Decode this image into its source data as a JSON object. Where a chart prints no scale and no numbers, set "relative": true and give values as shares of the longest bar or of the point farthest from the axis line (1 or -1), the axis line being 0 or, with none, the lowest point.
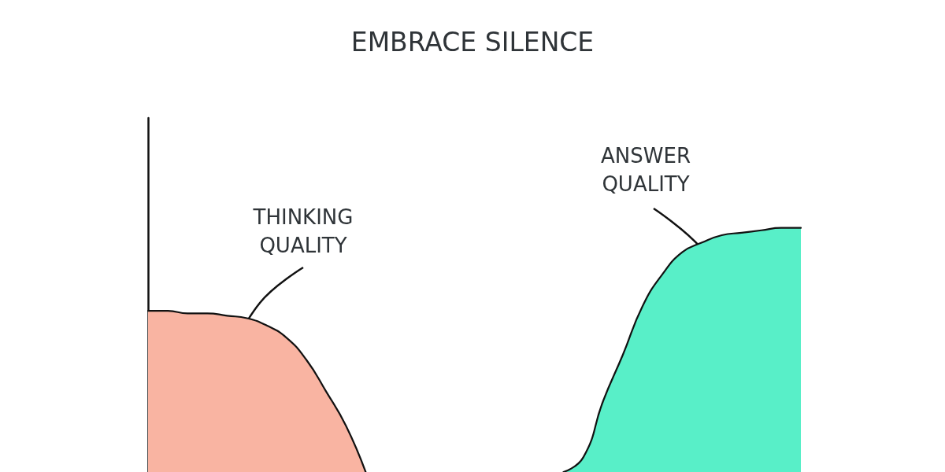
{
  "chart_data": {
    "type": "area",
    "title": "EMBRACE SILENCE",
    "relative": true,
    "grid": false,
    "marker": "none",
    "line_style": "solid",
    "categories": [
      null,
      null,
      null,
      null,
      null,
      null,
      null,
      null,
      null,
      null,
      null,
      null,
      null,
      null,
      null,
      null,
      null,
      null,
      null,
      null,
      null,
      null,
      null,
      null,
      null,
      null,
      null,
      null,
      null,
      null,
      null,
      null,
      null,
      null
    ],
    "series": [
      {
        "color": "#f9b4a2",
        "values": [
          0.66,
          0.66,
          0.65,
          0.65,
          0.64,
          0.63,
          0.6,
          0.55,
          0.46,
          0.33,
          0.19,
          0,
          null,
          null,
          null,
          null,
          null,
          null,
          null,
          null,
          null,
          null,
          null,
          null,
          null,
          null,
          null,
          null,
          null,
          null,
          null,
          null,
          null,
          null
        ]
      },
      {
        "color": "#58efc8",
        "values": [
          null,
          null,
          null,
          null,
          null,
          null,
          null,
          null,
          null,
          null,
          null,
          null,
          null,
          null,
          null,
          null,
          null,
          null,
          null,
          null,
          null,
          0,
          0.06,
          0.29,
          0.48,
          0.68,
          0.81,
          0.9,
          0.94,
          0.97,
          0.98,
          0.99,
          1,
          1
        ]
      }
    ],
    "annotations": [
      "THINKING QUALITY",
      "ANSWER QUALITY"
    ]
  }
}
